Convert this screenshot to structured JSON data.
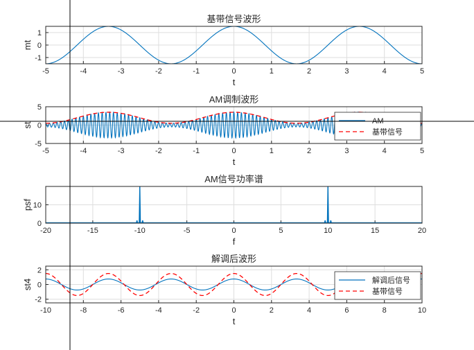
{
  "chart_data": [
    {
      "type": "line",
      "title": "基带信号波形",
      "xlabel": "t",
      "ylabel": "mt",
      "xlim": [
        -5,
        5
      ],
      "ylim": [
        -1.5,
        1.5
      ],
      "xticks": [
        "-5",
        "-4",
        "-3",
        "-2",
        "-1",
        "0",
        "1",
        "2",
        "3",
        "4",
        "5"
      ],
      "yticks": [
        "-1",
        "0",
        "1"
      ],
      "grid": true,
      "series": [
        {
          "expr": "1.5*cos(0.6*pi*t)",
          "color": "#0072BD",
          "style": "solid"
        }
      ]
    },
    {
      "type": "line",
      "title": "AM调制波形",
      "xlabel": "t",
      "ylabel": "st",
      "xlim": [
        -5,
        5
      ],
      "ylim": [
        -5,
        5
      ],
      "xticks": [
        "-5",
        "-4",
        "-3",
        "-2",
        "-1",
        "0",
        "1",
        "2",
        "3",
        "4",
        "5"
      ],
      "yticks": [
        "-5",
        "0",
        "5"
      ],
      "grid": true,
      "legend_position": "right",
      "series": [
        {
          "name": "AM",
          "expr": "(2+1.5*cos(0.6*pi*t))*cos(20*pi*t)",
          "color": "#0072BD",
          "style": "solid"
        },
        {
          "name": "基带信号",
          "expr": "2+1.5*cos(0.6*pi*t)",
          "color": "#FF0000",
          "style": "dashed"
        }
      ]
    },
    {
      "type": "line",
      "title": "AM信号功率谱",
      "xlabel": "f",
      "ylabel": "psf",
      "xlim": [
        -20,
        20
      ],
      "ylim": [
        0,
        20
      ],
      "xticks": [
        "-20",
        "-15",
        "-10",
        "-5",
        "0",
        "5",
        "10",
        "15",
        "20"
      ],
      "yticks": [
        "0",
        "10"
      ],
      "grid": true,
      "peaks": [
        {
          "f": -10,
          "value": 20
        },
        {
          "f": -10.3,
          "value": 1.5
        },
        {
          "f": -9.7,
          "value": 1.5
        },
        {
          "f": 10,
          "value": 20
        },
        {
          "f": 9.7,
          "value": 1.5
        },
        {
          "f": 10.3,
          "value": 1.5
        }
      ],
      "series": [
        {
          "color": "#0072BD",
          "style": "solid"
        }
      ]
    },
    {
      "type": "line",
      "title": "解调后波形",
      "xlabel": "t",
      "ylabel": "st4",
      "xlim": [
        -10,
        10
      ],
      "ylim": [
        -2.5,
        2.5
      ],
      "xticks": [
        "-10",
        "-8",
        "-6",
        "-4",
        "-2",
        "0",
        "2",
        "4",
        "6",
        "8",
        "10"
      ],
      "yticks": [
        "-2",
        "0",
        "2"
      ],
      "grid": true,
      "legend_position": "right",
      "series": [
        {
          "name": "解调后信号",
          "expr": "0.75*cos(0.6*pi*t)",
          "color": "#0072BD",
          "style": "solid"
        },
        {
          "name": "基带信号",
          "expr": "1.5*cos(0.6*pi*t)",
          "color": "#FF0000",
          "style": "dashed"
        }
      ]
    }
  ]
}
